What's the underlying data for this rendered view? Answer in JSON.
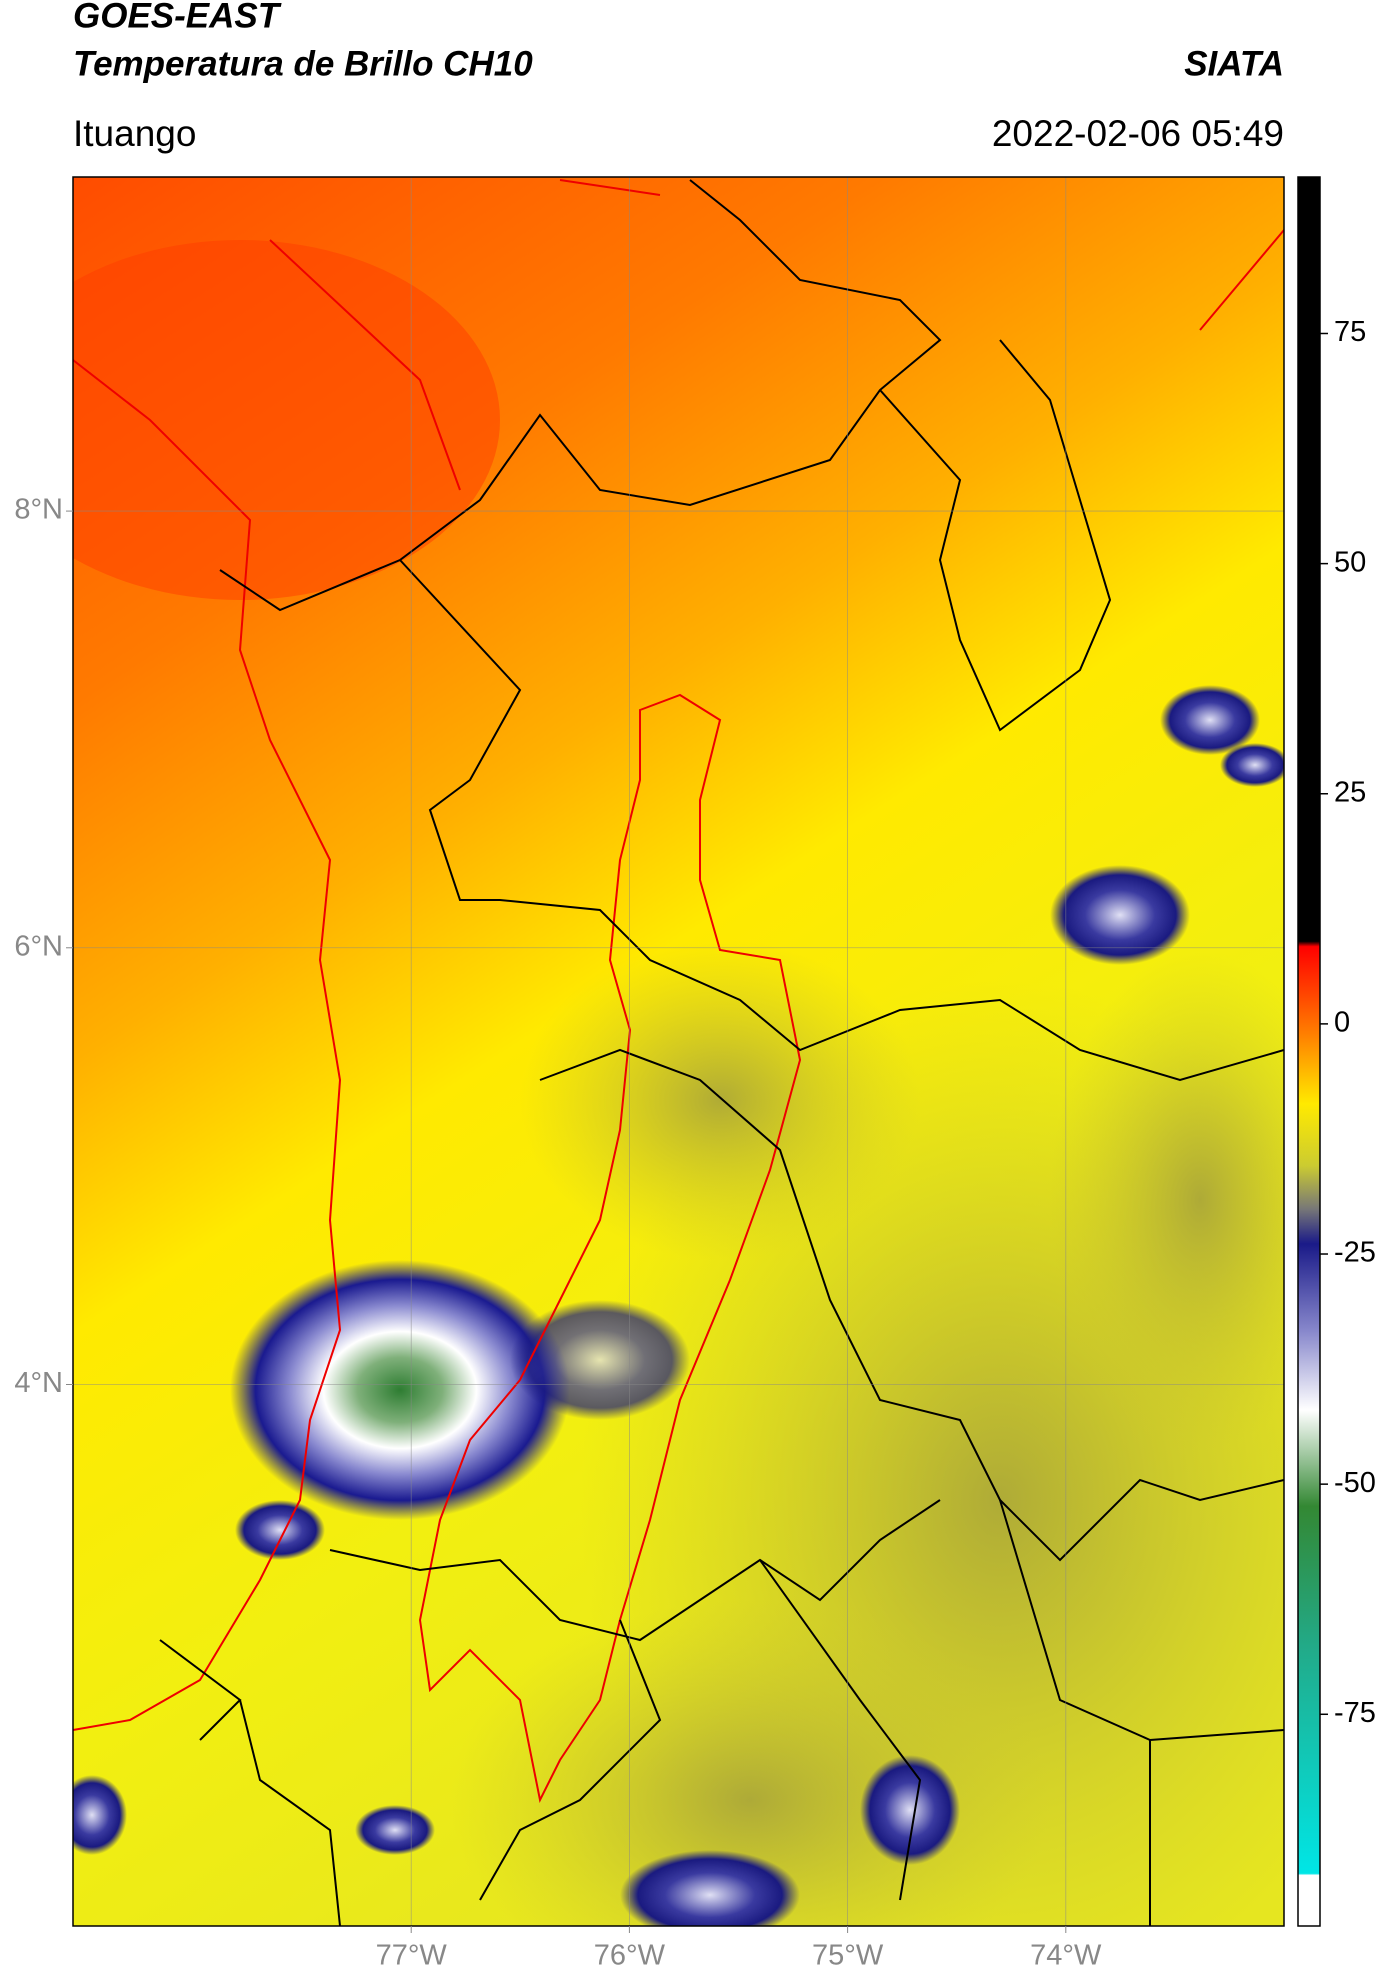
{
  "header": {
    "title": "GOES-EAST",
    "subtitle": "Temperatura de Brillo CH10",
    "source": "SIATA",
    "location": "Ituango",
    "datetime": "2022-02-06 05:49"
  },
  "map": {
    "xlim": [
      -78.55,
      -73.0
    ],
    "ylim": [
      1.52,
      9.53
    ],
    "xticks": [
      {
        "value": -77,
        "label": "77°W"
      },
      {
        "value": -76,
        "label": "76°W"
      },
      {
        "value": -75,
        "label": "75°W"
      },
      {
        "value": -74,
        "label": "74°W"
      }
    ],
    "yticks": [
      {
        "value": 8,
        "label": "8°N"
      },
      {
        "value": 6,
        "label": "6°N"
      },
      {
        "value": 4,
        "label": "4°N"
      }
    ],
    "grid": true
  },
  "colorbar": {
    "lim": [
      -98,
      92
    ],
    "ticks": [
      75,
      50,
      25,
      0,
      -25,
      -50,
      -75
    ]
  }
}
